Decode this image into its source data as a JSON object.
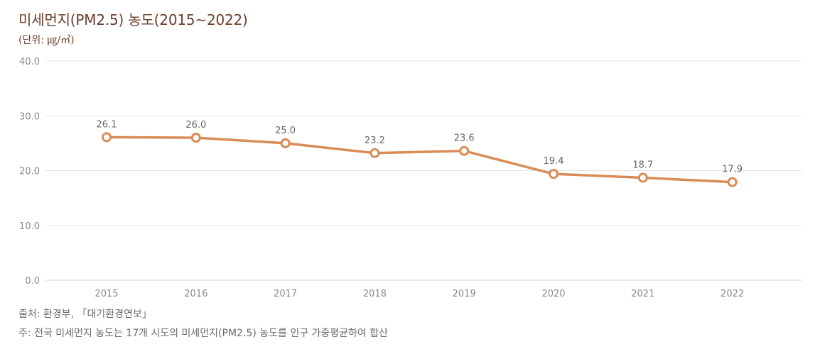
{
  "title": "미세먼지(PM2.5) 농도(2015~2022)",
  "unit": "(단위: ㎍/㎥)",
  "source": "출처: 환경부, 「대기환경연보」",
  "note": "주: 전국 미세먼지 농도는 17개 시도의 미세먼지(PM2.5) 농도를 인구 가중평균하여 합산",
  "colors": {
    "title": "#6b3f2e",
    "line": "#d98c55",
    "grid": "#e5e5e5",
    "axis_text": "#8a8a8a",
    "label_text": "#666666"
  },
  "chart_data": {
    "type": "line",
    "title": "미세먼지(PM2.5) 농도(2015~2022)",
    "xlabel": "",
    "ylabel": "",
    "x": [
      "2015",
      "2016",
      "2017",
      "2018",
      "2019",
      "2020",
      "2021",
      "2022"
    ],
    "values": [
      26.1,
      26.0,
      25.0,
      23.2,
      23.6,
      19.4,
      18.7,
      17.9
    ],
    "value_labels": [
      "26.1",
      "26.0",
      "25.0",
      "23.2",
      "23.6",
      "19.4",
      "18.7",
      "17.9"
    ],
    "yticks": [
      "0.0",
      "10.0",
      "20.0",
      "30.0",
      "40.0"
    ],
    "ylim": [
      0,
      40
    ],
    "grid": true,
    "legend": "none"
  }
}
